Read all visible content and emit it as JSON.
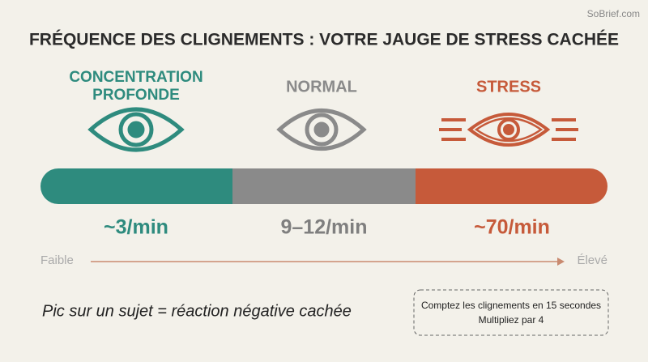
{
  "watermark": "SoBrief.com",
  "title": "FRÉQUENCE DES CLIGNEMENTS : VOTRE JAUGE DE STRESS CACHÉE",
  "levels": [
    {
      "label": [
        "CONCENTRATION",
        "PROFONDE"
      ],
      "rate": "~3/min"
    },
    {
      "label": [
        "NORMAL"
      ],
      "rate": "9–12/min"
    },
    {
      "label": [
        "STRESS"
      ],
      "rate": "~70/min"
    }
  ],
  "axis": {
    "low": "Faible",
    "high": "Élevé"
  },
  "note": "Pic sur un sujet = réaction négative cachée",
  "tip": [
    "Comptez les clignements en 15 secondes",
    "Multipliez par 4"
  ]
}
